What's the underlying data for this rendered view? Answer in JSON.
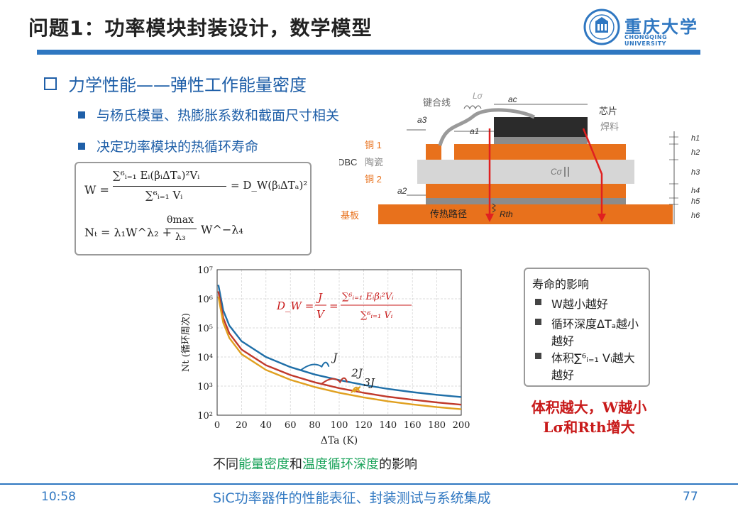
{
  "slide": {
    "title": "问题1：功率模块封装设计，数学模型",
    "logo_name": "重庆大学",
    "logo_en": "CHONGQING UNIVERSITY",
    "logo_seal_text": "重庆大学",
    "section_heading": "力学性能——弹性工作能量密度",
    "bullets": [
      "与杨氏模量、热膨胀系数和截面尺寸相关",
      "决定功率模块的热循环寿命"
    ]
  },
  "formulas": {
    "W_lhs": "W =",
    "W_num": "∑⁶ᵢ₌₁ Eᵢ(βᵢΔTₐ)²Vᵢ",
    "W_den": "∑⁶ᵢ₌₁ Vᵢ",
    "W_rhs": "= D_W(βᵢΔTₐ)²",
    "Nt_lhs": "Nₜ = λ₁W^λ₂ +",
    "Nt_frac_num": "θmax",
    "Nt_frac_den": "λ₃",
    "Nt_tail": "W^−λ₄",
    "DW_lhs": "D_W =",
    "DW_J": "J",
    "DW_V": "V",
    "DW_eq": "=",
    "DW_num": "∑⁶ᵢ₌₁ Eᵢβᵢ²Vᵢ",
    "DW_den": "∑⁶ᵢ₌₁ Vᵢ"
  },
  "cross_section": {
    "labels": {
      "bond_wire": "键合线",
      "L_sigma": "Lσ",
      "a_c": "ac",
      "a_3": "a3",
      "a_1": "a1",
      "a_2": "a2",
      "chip": "芯片",
      "solder": "焊料",
      "dbc": "DBC",
      "copper1": "铜 1",
      "ceramic": "陶瓷",
      "copper2": "铜 2",
      "c_sigma": "Cσ",
      "substrate": "基板",
      "heat_path": "传热路径",
      "r_th": "Rth",
      "h1": "h1",
      "h2": "h2",
      "h3": "h3",
      "h4": "h4",
      "h5": "h5",
      "h6": "h6"
    },
    "colors": {
      "copper": "#e8711c",
      "ceramic": "#d6d6d6",
      "chip": "#2b2b2b",
      "solder": "#8c8c8c",
      "heat_arrow": "#e02020",
      "label_red": "#e8711c"
    }
  },
  "chart_data": {
    "type": "line",
    "title": "",
    "xlabel": "ΔTa (K)",
    "ylabel": "Nt (循环周次)",
    "x_ticks": [
      0,
      20,
      40,
      60,
      80,
      100,
      120,
      140,
      160,
      180,
      200
    ],
    "y_ticks": [
      100,
      1000,
      10000,
      100000,
      1000000,
      10000000
    ],
    "y_tick_labels": [
      "10²",
      "10³",
      "10⁴",
      "10⁵",
      "10⁶",
      "10⁷"
    ],
    "xlim": [
      0,
      200
    ],
    "ylim": [
      100,
      10000000
    ],
    "yscale": "log",
    "grid": true,
    "series": [
      {
        "name": "J",
        "color": "#1f6fa8",
        "x": [
          1,
          5,
          10,
          20,
          40,
          60,
          80,
          100,
          120,
          140,
          160,
          180,
          200
        ],
        "y": [
          3000000,
          400000,
          120000,
          35000,
          10000,
          4500,
          2500,
          1600,
          1100,
          800,
          620,
          500,
          420
        ]
      },
      {
        "name": "2J",
        "color": "#c0392b",
        "x": [
          1,
          5,
          10,
          20,
          40,
          60,
          80,
          100,
          120,
          140,
          160,
          180,
          200
        ],
        "y": [
          1800000,
          220000,
          65000,
          18000,
          5200,
          2400,
          1350,
          850,
          590,
          430,
          340,
          275,
          230
        ]
      },
      {
        "name": "3J",
        "color": "#e0a020",
        "x": [
          1,
          5,
          10,
          20,
          40,
          60,
          80,
          100,
          120,
          140,
          160,
          180,
          200
        ],
        "y": [
          1200000,
          150000,
          45000,
          12500,
          3600,
          1650,
          930,
          590,
          410,
          300,
          235,
          190,
          160
        ]
      }
    ]
  },
  "chart_caption": {
    "p1": "不同",
    "p2": "能量密度",
    "p3": "和",
    "p4": "温度循环深度",
    "p5": "的影响"
  },
  "life_box": {
    "title": "寿命的影响",
    "items": [
      "W越小越好",
      "循环深度ΔTₐ越小越好",
      "体积∑⁶ᵢ₌₁ Vᵢ越大越好"
    ]
  },
  "conclusion": {
    "line1": "体积越大，W越小",
    "line2": "Lσ和Rth增大"
  },
  "footer": {
    "time": "10:58",
    "title": "SiC功率器件的性能表征、封装测试与系统集成",
    "page": "77"
  }
}
